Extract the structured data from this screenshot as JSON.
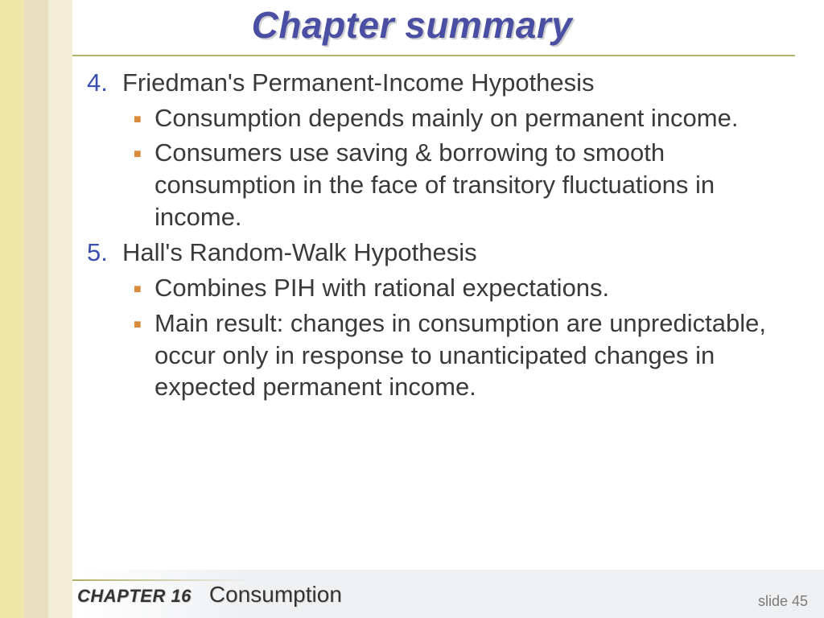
{
  "colors": {
    "band1": "#efe7a8",
    "band2": "#e9dfc0",
    "band3": "#f4eed6",
    "rule": "#b5b36a",
    "title": "#4a4fa3",
    "number": "#3a4fb0",
    "body": "#3a3a3a",
    "bullet_square": "#d98a3a",
    "footer_bg": "#eef0f2",
    "slide_num": "#7a7a7a"
  },
  "title": "Chapter summary",
  "items": [
    {
      "number": "4.",
      "heading": "Friedman's Permanent-Income Hypothesis",
      "bullets": [
        "Consumption depends mainly on permanent income.",
        "Consumers use saving & borrowing to smooth consumption in the face of transitory fluctuations in income."
      ]
    },
    {
      "number": "5.",
      "heading": "Hall's Random-Walk Hypothesis",
      "bullets": [
        "Combines PIH with rational expectations.",
        "Main result:  changes in consumption are unpredictable, occur only in response to unanticipated changes in expected permanent income."
      ]
    }
  ],
  "footer": {
    "chapter_label": "CHAPTER 16",
    "chapter_name": "Consumption",
    "slide_label": "slide 45"
  }
}
